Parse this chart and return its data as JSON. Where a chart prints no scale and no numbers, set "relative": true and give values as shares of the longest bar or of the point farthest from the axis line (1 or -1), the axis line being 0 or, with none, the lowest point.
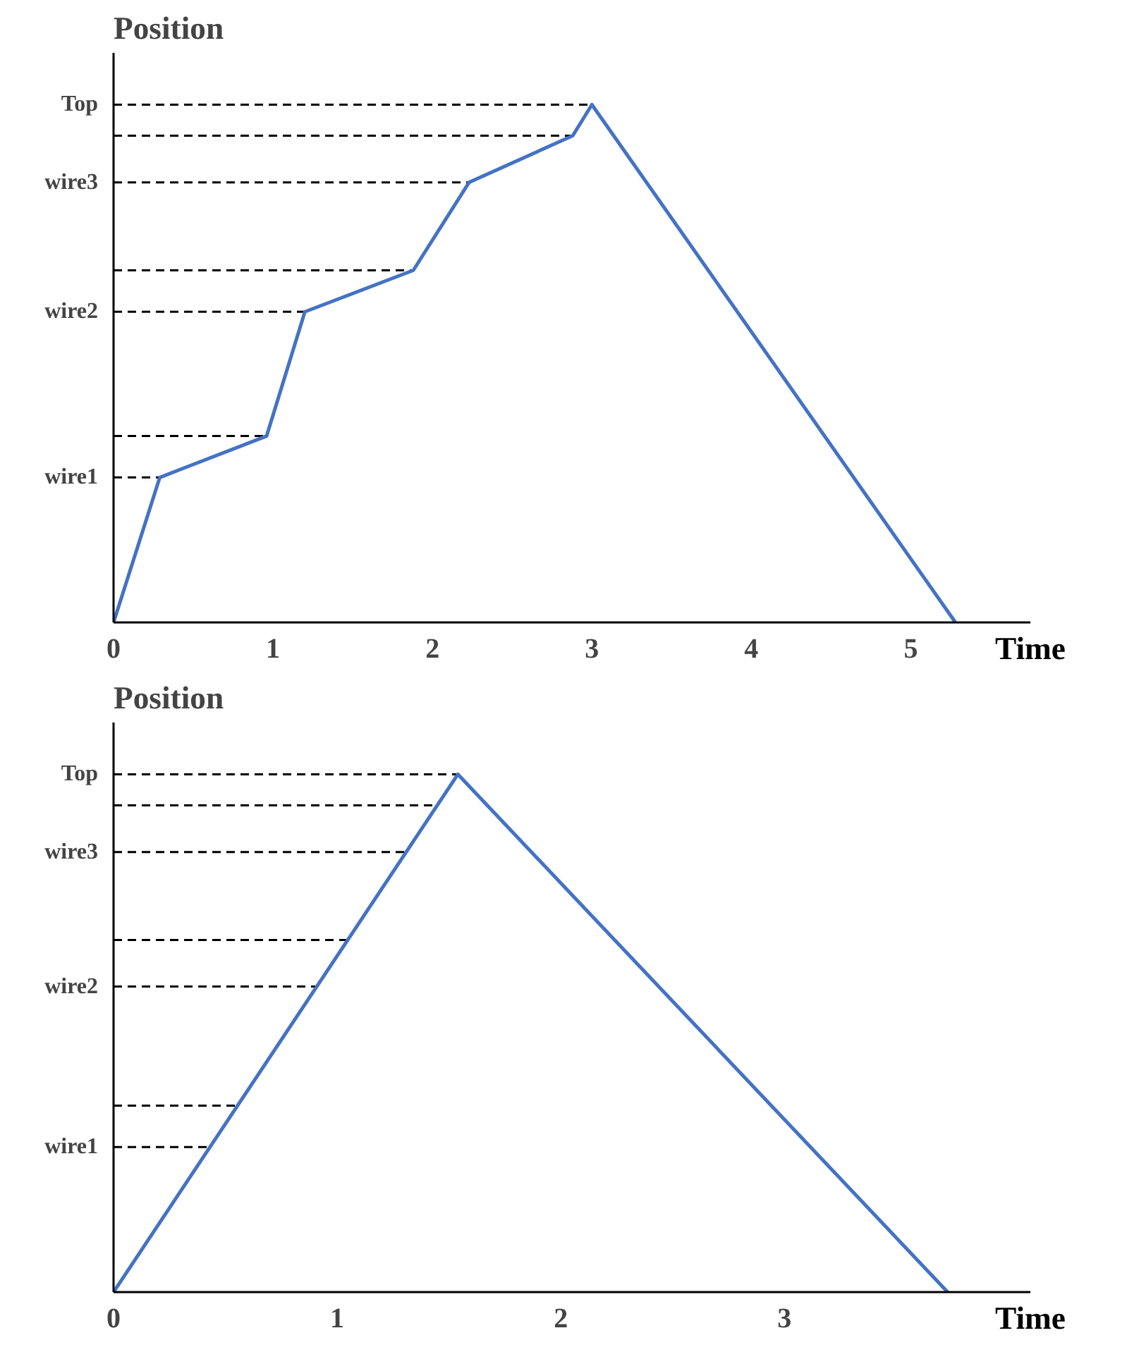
{
  "chart_data": [
    {
      "type": "line",
      "ylabel": "Position",
      "xlabel": "Time",
      "relative": true,
      "grid": false,
      "xlim": [
        0,
        5.75
      ],
      "xticks": [
        0,
        1,
        2,
        3,
        4,
        5
      ],
      "series": [
        {
          "color": "#4472c4",
          "x": [
            0,
            0.29,
            0.96,
            1.2,
            1.88,
            2.23,
            2.88,
            3.0,
            5.28
          ],
          "values": [
            0,
            0.28,
            0.36,
            0.6,
            0.68,
            0.85,
            0.94,
            1.0,
            0
          ]
        }
      ],
      "ref_lines": [
        {
          "axis": "y",
          "value": 0.28,
          "label": "wire1",
          "line_style": "dashed"
        },
        {
          "axis": "y",
          "value": 0.36,
          "label": null,
          "line_style": "dashed"
        },
        {
          "axis": "y",
          "value": 0.6,
          "label": "wire2",
          "line_style": "dashed"
        },
        {
          "axis": "y",
          "value": 0.68,
          "label": null,
          "line_style": "dashed"
        },
        {
          "axis": "y",
          "value": 0.85,
          "label": "wire3",
          "line_style": "dashed"
        },
        {
          "axis": "y",
          "value": 0.94,
          "label": null,
          "line_style": "dashed"
        },
        {
          "axis": "y",
          "value": 1.0,
          "label": "Top",
          "line_style": "dashed"
        }
      ]
    },
    {
      "type": "line",
      "ylabel": "Position",
      "xlabel": "Time",
      "relative": true,
      "grid": false,
      "xlim": [
        0,
        4.1
      ],
      "xticks": [
        0,
        1,
        2,
        3
      ],
      "series": [
        {
          "color": "#4472c4",
          "x": [
            0,
            1.54,
            3.73
          ],
          "values": [
            0,
            1.0,
            0
          ]
        }
      ],
      "ref_lines": [
        {
          "axis": "y",
          "value": 0.28,
          "label": "wire1",
          "line_style": "dashed"
        },
        {
          "axis": "y",
          "value": 0.36,
          "label": null,
          "line_style": "dashed"
        },
        {
          "axis": "y",
          "value": 0.59,
          "label": "wire2",
          "line_style": "dashed"
        },
        {
          "axis": "y",
          "value": 0.68,
          "label": null,
          "line_style": "dashed"
        },
        {
          "axis": "y",
          "value": 0.85,
          "label": "wire3",
          "line_style": "dashed"
        },
        {
          "axis": "y",
          "value": 0.94,
          "label": null,
          "line_style": "dashed"
        },
        {
          "axis": "y",
          "value": 1.0,
          "label": "Top",
          "line_style": "dashed"
        }
      ]
    }
  ]
}
